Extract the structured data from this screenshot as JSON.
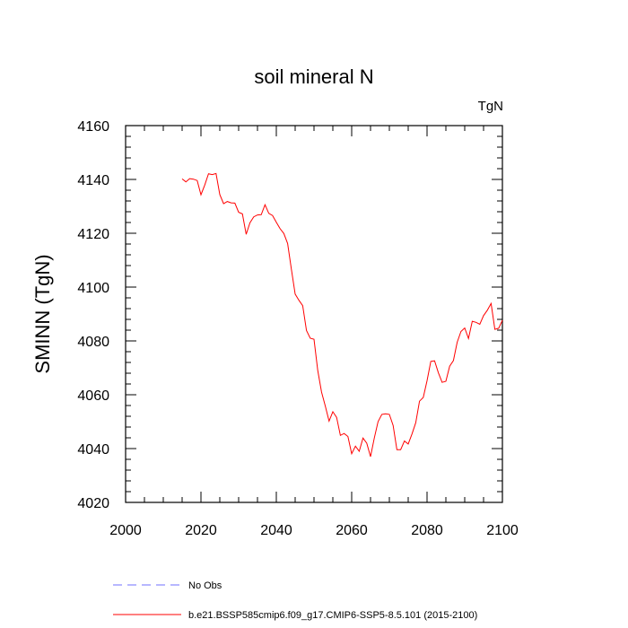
{
  "chart_data": {
    "type": "line",
    "title": "soil mineral N",
    "units_label": "TgN",
    "xlabel": "",
    "ylabel": "SMINN  (TgN)",
    "xlim": [
      2000,
      2100
    ],
    "ylim": [
      4020,
      4160
    ],
    "x_ticks": [
      2000,
      2020,
      2040,
      2060,
      2080,
      2100
    ],
    "y_ticks": [
      4020,
      4040,
      4060,
      4080,
      4100,
      4120,
      4140,
      4160
    ],
    "grid": false,
    "legend_position": "bottom",
    "series": [
      {
        "name": "b.e21.BSSP585cmip6.f09_g17.CMIP6-SSP5-8.5.101 (2015-2100)",
        "color": "#ff0000",
        "style": "solid",
        "x": [
          2015,
          2016,
          2017,
          2018,
          2019,
          2020,
          2021,
          2022,
          2023,
          2024,
          2025,
          2026,
          2027,
          2028,
          2029,
          2030,
          2031,
          2032,
          2033,
          2034,
          2035,
          2036,
          2037,
          2038,
          2039,
          2040,
          2041,
          2042,
          2043,
          2044,
          2045,
          2046,
          2047,
          2048,
          2049,
          2050,
          2051,
          2052,
          2053,
          2054,
          2055,
          2056,
          2057,
          2058,
          2059,
          2060,
          2061,
          2062,
          2063,
          2064,
          2065,
          2066,
          2067,
          2068,
          2069,
          2070,
          2071,
          2072,
          2073,
          2074,
          2075,
          2076,
          2077,
          2078,
          2079,
          2080,
          2081,
          2082,
          2083,
          2084,
          2085,
          2086,
          2087,
          2088,
          2089,
          2090,
          2091,
          2092,
          2093,
          2094,
          2095,
          2096,
          2097,
          2098,
          2099,
          2100
        ],
        "values": [
          4140.2,
          4139.1,
          4140.3,
          4140.1,
          4139.6,
          4134.3,
          4137.9,
          4142.1,
          4141.8,
          4142.2,
          4134.4,
          4131.0,
          4131.8,
          4131.3,
          4131.2,
          4127.8,
          4127.2,
          4119.6,
          4123.9,
          4126.1,
          4126.8,
          4126.9,
          4130.6,
          4127.4,
          4126.6,
          4124.1,
          4121.7,
          4119.9,
          4116.2,
          4106.6,
          4097.4,
          4095.1,
          4093.1,
          4083.9,
          4081.0,
          4080.6,
          4069.0,
          4061.0,
          4055.8,
          4050.2,
          4053.7,
          4051.6,
          4044.9,
          4045.6,
          4044.5,
          4038.1,
          4040.9,
          4039.0,
          4043.9,
          4042.0,
          4037.0,
          4043.9,
          4050.0,
          4052.7,
          4052.9,
          4052.7,
          4048.6,
          4039.6,
          4039.6,
          4042.8,
          4041.7,
          4045.4,
          4049.6,
          4057.6,
          4059.0,
          4065.2,
          4072.4,
          4072.6,
          4068.2,
          4064.6,
          4065.0,
          4070.6,
          4072.7,
          4079.5,
          4083.5,
          4084.8,
          4080.9,
          4087.3,
          4086.9,
          4086.2,
          4089.4,
          4091.4,
          4093.9,
          4084.3,
          4084.7,
          4087.7
        ]
      },
      {
        "name": "No Obs",
        "color": "#6f6fff",
        "style": "dashed",
        "x": [],
        "values": []
      }
    ]
  }
}
